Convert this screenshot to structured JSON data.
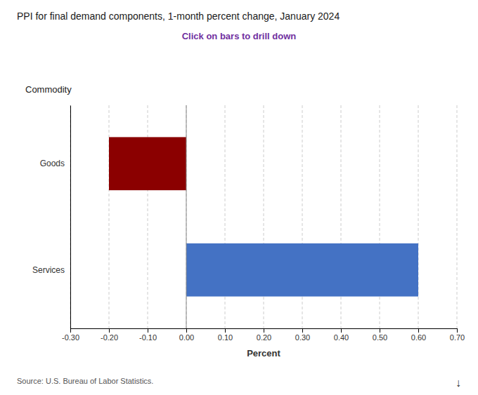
{
  "chart_data": {
    "type": "bar",
    "orientation": "horizontal",
    "title": "PPI for final demand components, 1-month percent change, January 2024",
    "subtitle": "Click on bars to drill down",
    "source": "Source: U.S. Bureau of Labor Statistics.",
    "annotations": [
      "↓"
    ],
    "xlabel": "Percent",
    "ylabel": "Commodity",
    "categories": [
      "Services",
      "Goods"
    ],
    "values": [
      0.6,
      -0.2
    ],
    "colors": [
      "#4472C4",
      "#8B0000"
    ],
    "xlim": [
      -0.3,
      0.7
    ],
    "xticks": [
      {
        "value": -0.3,
        "label": "-0.30"
      },
      {
        "value": -0.2,
        "label": "-0.20"
      },
      {
        "value": -0.1,
        "label": "-0.10"
      },
      {
        "value": 0.0,
        "label": "0.00"
      },
      {
        "value": 0.1,
        "label": "0.10"
      },
      {
        "value": 0.2,
        "label": "0.20"
      },
      {
        "value": 0.3,
        "label": "0.30"
      },
      {
        "value": 0.4,
        "label": "0.40"
      },
      {
        "value": 0.5,
        "label": "0.50"
      },
      {
        "value": 0.6,
        "label": "0.60"
      },
      {
        "value": 0.7,
        "label": "0.70"
      }
    ],
    "grid": true
  }
}
